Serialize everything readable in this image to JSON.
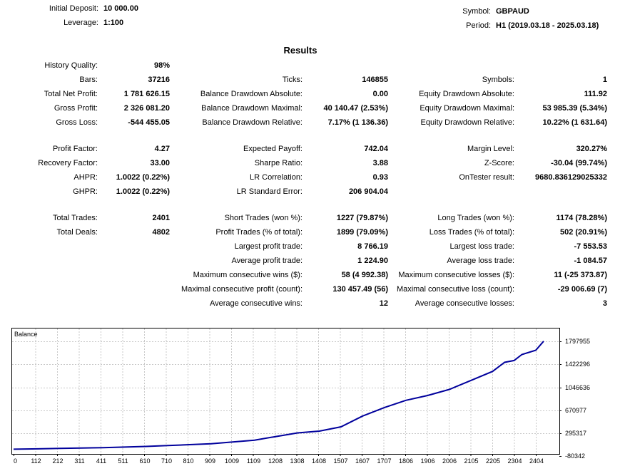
{
  "header": {
    "initial_deposit_label": "Initial Deposit:",
    "initial_deposit": "10 000.00",
    "leverage_label": "Leverage:",
    "leverage": "1:100",
    "symbol_label": "Symbol:",
    "symbol": "GBPAUD",
    "period_label": "Period:",
    "period": "H1 (2019.03.18 - 2025.03.18)"
  },
  "results_title": "Results",
  "stats": {
    "history_quality": {
      "label": "History Quality:",
      "value": "98%"
    },
    "bars": {
      "label": "Bars:",
      "value": "37216"
    },
    "ticks": {
      "label": "Ticks:",
      "value": "146855"
    },
    "symbols": {
      "label": "Symbols:",
      "value": "1"
    },
    "total_net_profit": {
      "label": "Total Net Profit:",
      "value": "1 781 626.15"
    },
    "balance_dd_absolute": {
      "label": "Balance Drawdown Absolute:",
      "value": "0.00"
    },
    "equity_dd_absolute": {
      "label": "Equity Drawdown Absolute:",
      "value": "111.92"
    },
    "gross_profit": {
      "label": "Gross Profit:",
      "value": "2 326 081.20"
    },
    "balance_dd_maximal": {
      "label": "Balance Drawdown Maximal:",
      "value": "40 140.47 (2.53%)"
    },
    "equity_dd_maximal": {
      "label": "Equity Drawdown Maximal:",
      "value": "53 985.39 (5.34%)"
    },
    "gross_loss": {
      "label": "Gross Loss:",
      "value": "-544 455.05"
    },
    "balance_dd_relative": {
      "label": "Balance Drawdown Relative:",
      "value": "7.17% (1 136.36)"
    },
    "equity_dd_relative": {
      "label": "Equity Drawdown Relative:",
      "value": "10.22% (1 631.64)"
    },
    "profit_factor": {
      "label": "Profit Factor:",
      "value": "4.27"
    },
    "expected_payoff": {
      "label": "Expected Payoff:",
      "value": "742.04"
    },
    "margin_level": {
      "label": "Margin Level:",
      "value": "320.27%"
    },
    "recovery_factor": {
      "label": "Recovery Factor:",
      "value": "33.00"
    },
    "sharpe_ratio": {
      "label": "Sharpe Ratio:",
      "value": "3.88"
    },
    "z_score": {
      "label": "Z-Score:",
      "value": "-30.04 (99.74%)"
    },
    "ahpr": {
      "label": "AHPR:",
      "value": "1.0022 (0.22%)"
    },
    "lr_correlation": {
      "label": "LR Correlation:",
      "value": "0.93"
    },
    "ontester_result": {
      "label": "OnTester result:",
      "value": "9680.836129025332"
    },
    "ghpr": {
      "label": "GHPR:",
      "value": "1.0022 (0.22%)"
    },
    "lr_standard_error": {
      "label": "LR Standard Error:",
      "value": "206 904.04"
    },
    "total_trades": {
      "label": "Total Trades:",
      "value": "2401"
    },
    "short_trades": {
      "label": "Short Trades (won %):",
      "value": "1227 (79.87%)"
    },
    "long_trades": {
      "label": "Long Trades (won %):",
      "value": "1174 (78.28%)"
    },
    "total_deals": {
      "label": "Total Deals:",
      "value": "4802"
    },
    "profit_trades": {
      "label": "Profit Trades (% of total):",
      "value": "1899 (79.09%)"
    },
    "loss_trades": {
      "label": "Loss Trades (% of total):",
      "value": "502 (20.91%)"
    },
    "largest_profit_trade": {
      "label": "Largest profit trade:",
      "value": "8 766.19"
    },
    "largest_loss_trade": {
      "label": "Largest loss trade:",
      "value": "-7 553.53"
    },
    "avg_profit_trade": {
      "label": "Average profit trade:",
      "value": "1 224.90"
    },
    "avg_loss_trade": {
      "label": "Average loss trade:",
      "value": "-1 084.57"
    },
    "max_consec_wins": {
      "label": "Maximum consecutive wins ($):",
      "value": "58 (4 992.38)"
    },
    "max_consec_losses": {
      "label": "Maximum consecutive losses ($):",
      "value": "11 (-25 373.87)"
    },
    "maximal_consec_profit": {
      "label": "Maximal consecutive profit (count):",
      "value": "130 457.49 (56)"
    },
    "maximal_consec_loss": {
      "label": "Maximal consecutive loss (count):",
      "value": "-29 006.69 (7)"
    },
    "avg_consec_wins": {
      "label": "Average consecutive wins:",
      "value": "12"
    },
    "avg_consec_losses": {
      "label": "Average consecutive losses:",
      "value": "3"
    }
  },
  "chart_data": {
    "type": "line",
    "title": "Balance",
    "x_ticks": [
      "0",
      "112",
      "212",
      "311",
      "411",
      "511",
      "610",
      "710",
      "810",
      "909",
      "1009",
      "1109",
      "1208",
      "1308",
      "1408",
      "1507",
      "1607",
      "1707",
      "1806",
      "1906",
      "2006",
      "2105",
      "2205",
      "2304",
      "2404"
    ],
    "y_ticks": [
      "1797955",
      "1422296",
      "1046636",
      "670977",
      "295317",
      "-80342"
    ],
    "xlim": [
      0,
      2404
    ],
    "ylim": [
      -80342,
      1797955
    ],
    "grid": true,
    "series": [
      {
        "color": "#00009c",
        "x": [
          0,
          112,
          212,
          311,
          411,
          511,
          610,
          710,
          810,
          909,
          1009,
          1109,
          1208,
          1308,
          1408,
          1507,
          1607,
          1707,
          1806,
          1906,
          2006,
          2105,
          2205,
          2260,
          2304,
          2340,
          2404,
          2440
        ],
        "y": [
          10000,
          15000,
          23000,
          30000,
          35000,
          45000,
          55000,
          70000,
          85000,
          100000,
          130000,
          160000,
          220000,
          280000,
          310000,
          380000,
          560000,
          700000,
          820000,
          900000,
          1000000,
          1150000,
          1300000,
          1450000,
          1480000,
          1580000,
          1650000,
          1800000
        ]
      }
    ]
  }
}
